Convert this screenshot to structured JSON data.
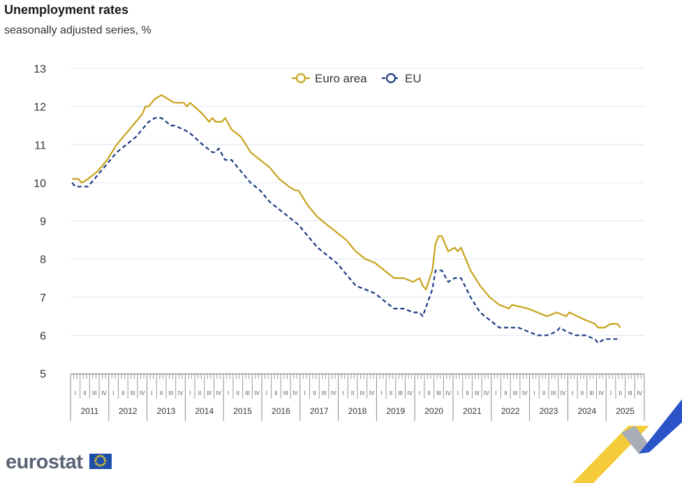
{
  "title": "Unemployment rates",
  "subtitle": "seasonally adjusted series, %",
  "logo": {
    "text": "eurostat",
    "flag_icon": "eu-flag-icon"
  },
  "chart_data": {
    "type": "line",
    "ylim": [
      5,
      13
    ],
    "yticks": [
      "5",
      "6",
      "7",
      "8",
      "9",
      "10",
      "11",
      "12",
      "13"
    ],
    "grid": true,
    "legend_position": "top-center",
    "x_start": "2011-01",
    "x_end": "2025-06",
    "years": [
      "2011",
      "2012",
      "2013",
      "2014",
      "2015",
      "2016",
      "2017",
      "2018",
      "2019",
      "2020",
      "2021",
      "2022",
      "2023",
      "2024",
      "2025"
    ],
    "quarter_labels": [
      "I",
      "II",
      "III",
      "IV"
    ],
    "series": [
      {
        "name": "Euro area",
        "color": "#c9a21a",
        "style": "solid",
        "points": [
          [
            "2011-01",
            10.1
          ],
          [
            "2011-03",
            10.1
          ],
          [
            "2011-04",
            10.0
          ],
          [
            "2011-06",
            10.1
          ],
          [
            "2011-09",
            10.3
          ],
          [
            "2011-12",
            10.6
          ],
          [
            "2012-03",
            11.0
          ],
          [
            "2012-06",
            11.3
          ],
          [
            "2012-09",
            11.6
          ],
          [
            "2012-11",
            11.8
          ],
          [
            "2012-12",
            12.0
          ],
          [
            "2013-01",
            12.0
          ],
          [
            "2013-03",
            12.2
          ],
          [
            "2013-05",
            12.3
          ],
          [
            "2013-07",
            12.2
          ],
          [
            "2013-09",
            12.1
          ],
          [
            "2013-12",
            12.1
          ],
          [
            "2014-01",
            12.0
          ],
          [
            "2014-02",
            12.1
          ],
          [
            "2014-06",
            11.8
          ],
          [
            "2014-08",
            11.6
          ],
          [
            "2014-09",
            11.7
          ],
          [
            "2014-10",
            11.6
          ],
          [
            "2014-12",
            11.6
          ],
          [
            "2015-01",
            11.7
          ],
          [
            "2015-03",
            11.4
          ],
          [
            "2015-06",
            11.2
          ],
          [
            "2015-09",
            10.8
          ],
          [
            "2015-12",
            10.6
          ],
          [
            "2016-03",
            10.4
          ],
          [
            "2016-06",
            10.1
          ],
          [
            "2016-09",
            9.9
          ],
          [
            "2016-11",
            9.8
          ],
          [
            "2016-12",
            9.8
          ],
          [
            "2017-03",
            9.4
          ],
          [
            "2017-06",
            9.1
          ],
          [
            "2017-09",
            8.9
          ],
          [
            "2017-12",
            8.7
          ],
          [
            "2018-03",
            8.5
          ],
          [
            "2018-06",
            8.2
          ],
          [
            "2018-09",
            8.0
          ],
          [
            "2018-12",
            7.9
          ],
          [
            "2019-03",
            7.7
          ],
          [
            "2019-06",
            7.5
          ],
          [
            "2019-09",
            7.5
          ],
          [
            "2019-12",
            7.4
          ],
          [
            "2020-02",
            7.5
          ],
          [
            "2020-03",
            7.3
          ],
          [
            "2020-04",
            7.2
          ],
          [
            "2020-06",
            7.7
          ],
          [
            "2020-07",
            8.4
          ],
          [
            "2020-08",
            8.6
          ],
          [
            "2020-09",
            8.6
          ],
          [
            "2020-11",
            8.2
          ],
          [
            "2021-01",
            8.3
          ],
          [
            "2021-02",
            8.2
          ],
          [
            "2021-03",
            8.3
          ],
          [
            "2021-06",
            7.7
          ],
          [
            "2021-09",
            7.3
          ],
          [
            "2021-12",
            7.0
          ],
          [
            "2022-03",
            6.8
          ],
          [
            "2022-06",
            6.7
          ],
          [
            "2022-07",
            6.8
          ],
          [
            "2022-12",
            6.7
          ],
          [
            "2023-03",
            6.6
          ],
          [
            "2023-06",
            6.5
          ],
          [
            "2023-09",
            6.6
          ],
          [
            "2023-12",
            6.5
          ],
          [
            "2024-01",
            6.6
          ],
          [
            "2024-06",
            6.4
          ],
          [
            "2024-09",
            6.3
          ],
          [
            "2024-10",
            6.2
          ],
          [
            "2024-12",
            6.2
          ],
          [
            "2025-02",
            6.3
          ],
          [
            "2025-04",
            6.3
          ],
          [
            "2025-05",
            6.2
          ]
        ]
      },
      {
        "name": "EU",
        "color": "#1c3a84",
        "style": "dashed",
        "points": [
          [
            "2011-01",
            10.0
          ],
          [
            "2011-02",
            9.9
          ],
          [
            "2011-06",
            9.9
          ],
          [
            "2011-09",
            10.2
          ],
          [
            "2011-12",
            10.5
          ],
          [
            "2012-03",
            10.8
          ],
          [
            "2012-06",
            11.0
          ],
          [
            "2012-09",
            11.2
          ],
          [
            "2012-12",
            11.5
          ],
          [
            "2013-01",
            11.6
          ],
          [
            "2013-03",
            11.7
          ],
          [
            "2013-05",
            11.7
          ],
          [
            "2013-08",
            11.5
          ],
          [
            "2013-09",
            11.5
          ],
          [
            "2013-12",
            11.4
          ],
          [
            "2014-02",
            11.3
          ],
          [
            "2014-06",
            11.0
          ],
          [
            "2014-09",
            10.8
          ],
          [
            "2014-10",
            10.8
          ],
          [
            "2014-11",
            10.9
          ],
          [
            "2015-01",
            10.6
          ],
          [
            "2015-03",
            10.6
          ],
          [
            "2015-06",
            10.3
          ],
          [
            "2015-09",
            10.0
          ],
          [
            "2015-12",
            9.8
          ],
          [
            "2016-03",
            9.5
          ],
          [
            "2016-06",
            9.3
          ],
          [
            "2016-09",
            9.1
          ],
          [
            "2016-12",
            8.9
          ],
          [
            "2017-03",
            8.6
          ],
          [
            "2017-06",
            8.3
          ],
          [
            "2017-09",
            8.1
          ],
          [
            "2017-12",
            7.9
          ],
          [
            "2018-03",
            7.6
          ],
          [
            "2018-06",
            7.3
          ],
          [
            "2018-09",
            7.2
          ],
          [
            "2018-12",
            7.1
          ],
          [
            "2019-03",
            6.9
          ],
          [
            "2019-06",
            6.7
          ],
          [
            "2019-09",
            6.7
          ],
          [
            "2019-12",
            6.6
          ],
          [
            "2020-02",
            6.6
          ],
          [
            "2020-03",
            6.5
          ],
          [
            "2020-06",
            7.2
          ],
          [
            "2020-07",
            7.7
          ],
          [
            "2020-09",
            7.7
          ],
          [
            "2020-11",
            7.4
          ],
          [
            "2021-01",
            7.5
          ],
          [
            "2021-03",
            7.5
          ],
          [
            "2021-06",
            7.0
          ],
          [
            "2021-09",
            6.6
          ],
          [
            "2021-12",
            6.4
          ],
          [
            "2022-03",
            6.2
          ],
          [
            "2022-06",
            6.2
          ],
          [
            "2022-09",
            6.2
          ],
          [
            "2022-12",
            6.1
          ],
          [
            "2023-03",
            6.0
          ],
          [
            "2023-06",
            6.0
          ],
          [
            "2023-09",
            6.1
          ],
          [
            "2023-10",
            6.2
          ],
          [
            "2023-12",
            6.1
          ],
          [
            "2024-03",
            6.0
          ],
          [
            "2024-06",
            6.0
          ],
          [
            "2024-09",
            5.9
          ],
          [
            "2024-10",
            5.8
          ],
          [
            "2024-12",
            5.9
          ],
          [
            "2025-05",
            5.9
          ]
        ]
      }
    ]
  }
}
